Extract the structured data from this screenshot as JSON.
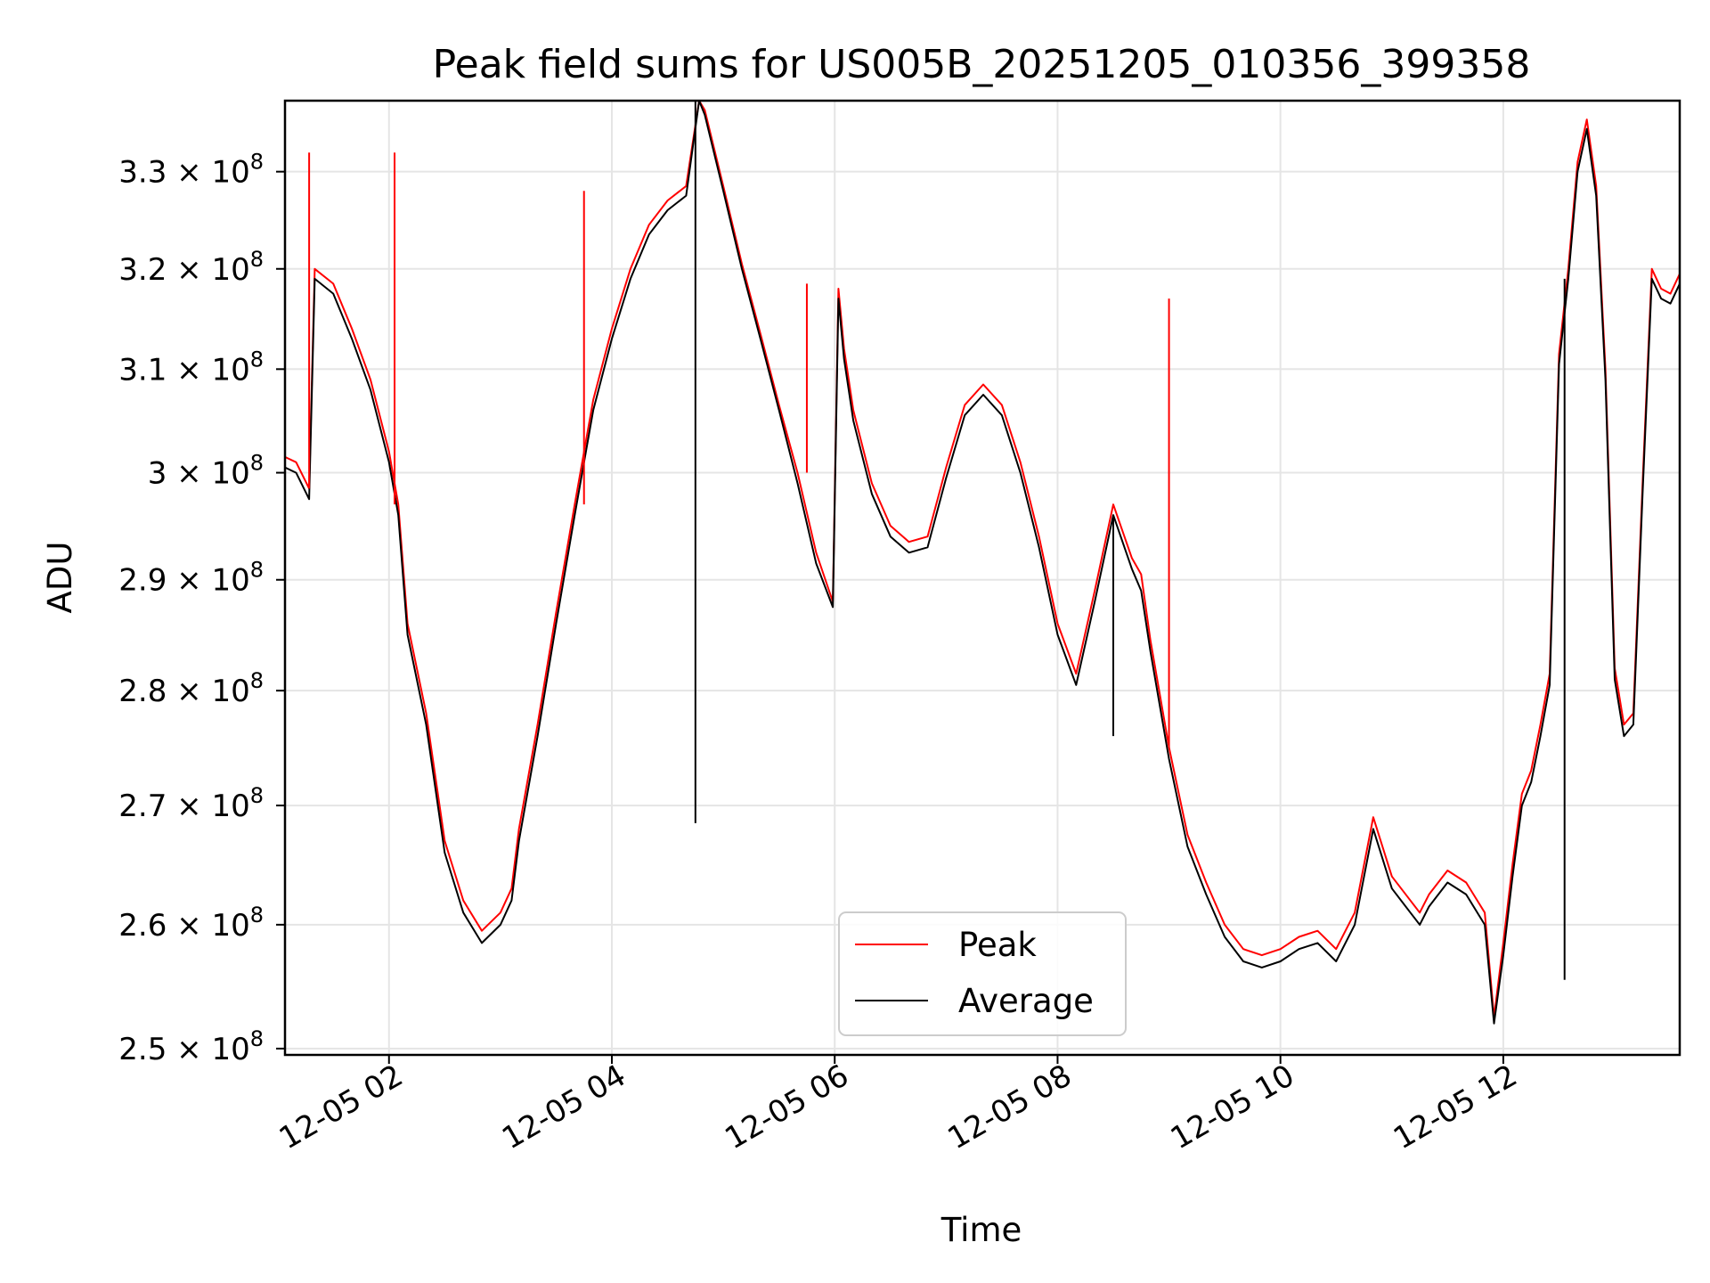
{
  "chart_data": {
    "type": "line",
    "title": "Peak field sums for US005B_20251205_010356_399358",
    "xlabel": "Time",
    "ylabel": "ADU",
    "xlim": [
      "2025-12-05 01:04",
      "2025-12-05 13:35"
    ],
    "ylim": [
      249500000,
      337500000
    ],
    "yscale": "log",
    "grid": true,
    "legend_position": "bottom-center",
    "x_ticks": [
      {
        "value": "2025-12-05 02:00",
        "label": "12-05 02"
      },
      {
        "value": "2025-12-05 04:00",
        "label": "12-05 04"
      },
      {
        "value": "2025-12-05 06:00",
        "label": "12-05 06"
      },
      {
        "value": "2025-12-05 08:00",
        "label": "12-05 08"
      },
      {
        "value": "2025-12-05 10:00",
        "label": "12-05 10"
      },
      {
        "value": "2025-12-05 12:00",
        "label": "12-05 12"
      }
    ],
    "y_ticks": [
      {
        "value": 250000000,
        "mantissa": "2.5",
        "exponent": "8"
      },
      {
        "value": 260000000,
        "mantissa": "2.6",
        "exponent": "8"
      },
      {
        "value": 270000000,
        "mantissa": "2.7",
        "exponent": "8"
      },
      {
        "value": 280000000,
        "mantissa": "2.8",
        "exponent": "8"
      },
      {
        "value": 290000000,
        "mantissa": "2.9",
        "exponent": "8"
      },
      {
        "value": 300000000,
        "mantissa": "3",
        "exponent": "8"
      },
      {
        "value": 310000000,
        "mantissa": "3.1",
        "exponent": "8"
      },
      {
        "value": 320000000,
        "mantissa": "3.2",
        "exponent": "8"
      },
      {
        "value": 330000000,
        "mantissa": "3.3",
        "exponent": "8"
      }
    ],
    "times": [
      "2025-12-05 01:04",
      "2025-12-05 01:10",
      "2025-12-05 01:17",
      "2025-12-05 01:20",
      "2025-12-05 01:30",
      "2025-12-05 01:40",
      "2025-12-05 01:50",
      "2025-12-05 02:00",
      "2025-12-05 02:05",
      "2025-12-05 02:10",
      "2025-12-05 02:20",
      "2025-12-05 02:30",
      "2025-12-05 02:40",
      "2025-12-05 02:50",
      "2025-12-05 03:00",
      "2025-12-05 03:06",
      "2025-12-05 03:10",
      "2025-12-05 03:20",
      "2025-12-05 03:30",
      "2025-12-05 03:40",
      "2025-12-05 03:50",
      "2025-12-05 04:00",
      "2025-12-05 04:10",
      "2025-12-05 04:20",
      "2025-12-05 04:30",
      "2025-12-05 04:40",
      "2025-12-05 04:47",
      "2025-12-05 04:50",
      "2025-12-05 05:00",
      "2025-12-05 05:10",
      "2025-12-05 05:20",
      "2025-12-05 05:30",
      "2025-12-05 05:40",
      "2025-12-05 05:50",
      "2025-12-05 05:59",
      "2025-12-05 06:02",
      "2025-12-05 06:05",
      "2025-12-05 06:10",
      "2025-12-05 06:20",
      "2025-12-05 06:30",
      "2025-12-05 06:40",
      "2025-12-05 06:50",
      "2025-12-05 07:00",
      "2025-12-05 07:10",
      "2025-12-05 07:20",
      "2025-12-05 07:30",
      "2025-12-05 07:40",
      "2025-12-05 07:50",
      "2025-12-05 08:00",
      "2025-12-05 08:10",
      "2025-12-05 08:20",
      "2025-12-05 08:30",
      "2025-12-05 08:40",
      "2025-12-05 08:45",
      "2025-12-05 08:50",
      "2025-12-05 09:00",
      "2025-12-05 09:10",
      "2025-12-05 09:20",
      "2025-12-05 09:30",
      "2025-12-05 09:40",
      "2025-12-05 09:50",
      "2025-12-05 10:00",
      "2025-12-05 10:10",
      "2025-12-05 10:20",
      "2025-12-05 10:30",
      "2025-12-05 10:40",
      "2025-12-05 10:50",
      "2025-12-05 11:00",
      "2025-12-05 11:10",
      "2025-12-05 11:15",
      "2025-12-05 11:20",
      "2025-12-05 11:30",
      "2025-12-05 11:40",
      "2025-12-05 11:50",
      "2025-12-05 11:55",
      "2025-12-05 12:00",
      "2025-12-05 12:05",
      "2025-12-05 12:10",
      "2025-12-05 12:15",
      "2025-12-05 12:20",
      "2025-12-05 12:25",
      "2025-12-05 12:30",
      "2025-12-05 12:35",
      "2025-12-05 12:40",
      "2025-12-05 12:45",
      "2025-12-05 12:50",
      "2025-12-05 12:55",
      "2025-12-05 13:00",
      "2025-12-05 13:05",
      "2025-12-05 13:10",
      "2025-12-05 13:15",
      "2025-12-05 13:20",
      "2025-12-05 13:25",
      "2025-12-05 13:30",
      "2025-12-05 13:35"
    ],
    "series": [
      {
        "name": "Average",
        "color": "#000000",
        "values": [
          300500000,
          300000000,
          297500000,
          319000000,
          317500000,
          313000000,
          308000000,
          301000000,
          296000000,
          285000000,
          277000000,
          266000000,
          261000000,
          258500000,
          260000000,
          262000000,
          267000000,
          276000000,
          286000000,
          296000000,
          306000000,
          313000000,
          319000000,
          323500000,
          326000000,
          327500000,
          337500000,
          336000000,
          328000000,
          320000000,
          313000000,
          306000000,
          299000000,
          291500000,
          287500000,
          317000000,
          311000000,
          305000000,
          298000000,
          294000000,
          292500000,
          293000000,
          299500000,
          305500000,
          307500000,
          305500000,
          300000000,
          293000000,
          285000000,
          280500000,
          288000000,
          296000000,
          291000000,
          289000000,
          283500000,
          274000000,
          266500000,
          262500000,
          259000000,
          257000000,
          256500000,
          257000000,
          258000000,
          258500000,
          257000000,
          260000000,
          268000000,
          263000000,
          261000000,
          260000000,
          261500000,
          263500000,
          262500000,
          260000000,
          252000000,
          257500000,
          264000000,
          270000000,
          272000000,
          276000000,
          280500000,
          310500000,
          319000000,
          330000000,
          334500000,
          327500000,
          309000000,
          281000000,
          276000000,
          277000000,
          298000000,
          319000000,
          317000000,
          316500000,
          318500000
        ]
      },
      {
        "name": "Peak",
        "color": "#ff0000",
        "values": [
          301500000,
          301000000,
          298500000,
          320000000,
          318500000,
          314000000,
          309000000,
          302000000,
          297000000,
          286000000,
          278000000,
          267000000,
          262000000,
          259500000,
          261000000,
          263000000,
          268000000,
          277000000,
          287000000,
          297000000,
          307000000,
          314000000,
          320000000,
          324500000,
          327000000,
          328500000,
          337500000,
          336500000,
          328500000,
          320500000,
          313500000,
          306500000,
          300000000,
          292500000,
          288000000,
          318000000,
          312000000,
          306000000,
          299000000,
          295000000,
          293500000,
          294000000,
          300500000,
          306500000,
          308500000,
          306500000,
          301000000,
          294000000,
          286000000,
          281500000,
          289000000,
          297000000,
          292000000,
          290500000,
          284500000,
          275000000,
          267500000,
          263500000,
          260000000,
          258000000,
          257500000,
          258000000,
          259000000,
          259500000,
          258000000,
          261000000,
          269000000,
          264000000,
          262000000,
          261000000,
          262500000,
          264500000,
          263500000,
          261000000,
          252500000,
          258500000,
          265000000,
          271000000,
          273000000,
          277000000,
          281500000,
          311500000,
          320000000,
          331000000,
          335500000,
          328500000,
          310000000,
          282000000,
          277000000,
          278000000,
          299000000,
          320000000,
          318000000,
          317500000,
          319500000
        ]
      }
    ],
    "annotations": [
      {
        "series": "Peak",
        "kind": "spike",
        "time": "2025-12-05 01:17",
        "value": 332000000
      },
      {
        "series": "Peak",
        "kind": "spike",
        "time": "2025-12-05 02:03",
        "value": 332000000
      },
      {
        "series": "Peak",
        "kind": "spike",
        "time": "2025-12-05 03:45",
        "value": 328000000
      },
      {
        "series": "Peak",
        "kind": "spike",
        "time": "2025-12-05 05:45",
        "value": 318500000
      },
      {
        "series": "Peak",
        "kind": "spike",
        "time": "2025-12-05 09:00",
        "value": 317000000
      },
      {
        "series": "Average",
        "kind": "dip",
        "time": "2025-12-05 04:45",
        "value": 268500000
      },
      {
        "series": "Average",
        "kind": "dip",
        "time": "2025-12-05 08:30",
        "value": 276000000
      },
      {
        "series": "Average",
        "kind": "dip",
        "time": "2025-12-05 12:33",
        "value": 255500000
      }
    ]
  }
}
